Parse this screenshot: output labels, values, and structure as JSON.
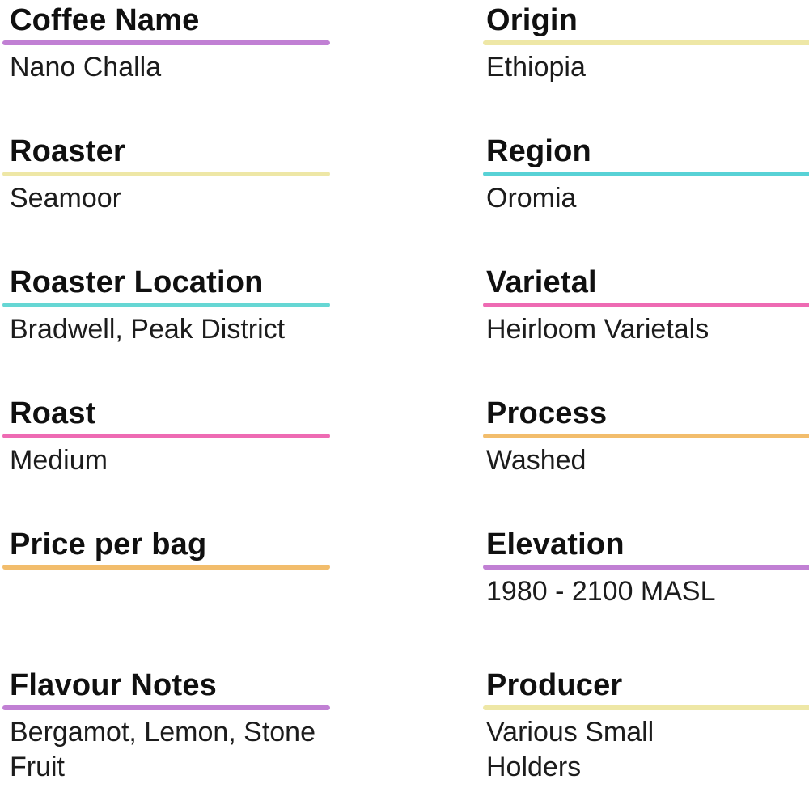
{
  "page": {
    "background_color": "#ffffff",
    "heading_text_color": "#101010",
    "value_text_color": "#1c1c1c"
  },
  "accent_colors": {
    "purple": "#c180d4",
    "yellow": "#eee7a6",
    "cyan_light": "#66d7d4",
    "cyan": "#58d2d6",
    "pink": "#ee6bb3",
    "orange": "#f2bd6c"
  },
  "fields": {
    "left": [
      {
        "label": "Coffee Name",
        "value": "Nano Challa",
        "underline_color": "#c180d4",
        "underline_color_name": "purple"
      },
      {
        "label": "Roaster",
        "value": "Seamoor",
        "underline_color": "#eee7a6",
        "underline_color_name": "yellow"
      },
      {
        "label": "Roaster Location",
        "value": "Bradwell, Peak District",
        "underline_color": "#66d7d4",
        "underline_color_name": "cyan"
      },
      {
        "label": "Roast",
        "value": "Medium",
        "underline_color": "#ee6bb3",
        "underline_color_name": "pink"
      },
      {
        "label": "Price per bag",
        "value": "",
        "underline_color": "#f2bd6c",
        "underline_color_name": "orange"
      },
      {
        "label": "Flavour Notes",
        "value": "Bergamot, Lemon, Stone Fruit",
        "underline_color": "#c180d4",
        "underline_color_name": "purple"
      }
    ],
    "right": [
      {
        "label": "Origin",
        "value": "Ethiopia",
        "underline_color": "#eee7a6",
        "underline_color_name": "yellow"
      },
      {
        "label": "Region",
        "value": "Oromia",
        "underline_color": "#58d2d6",
        "underline_color_name": "cyan"
      },
      {
        "label": "Varietal",
        "value": "Heirloom Varietals",
        "underline_color": "#ee6bb3",
        "underline_color_name": "pink"
      },
      {
        "label": "Process",
        "value": "Washed",
        "underline_color": "#f2bd6c",
        "underline_color_name": "orange"
      },
      {
        "label": "Elevation",
        "value": "1980 - 2100 MASL",
        "underline_color": "#c180d4",
        "underline_color_name": "purple"
      },
      {
        "label": "Producer",
        "value": "Various Small Holders",
        "underline_color": "#eee7a6",
        "underline_color_name": "yellow"
      }
    ]
  }
}
